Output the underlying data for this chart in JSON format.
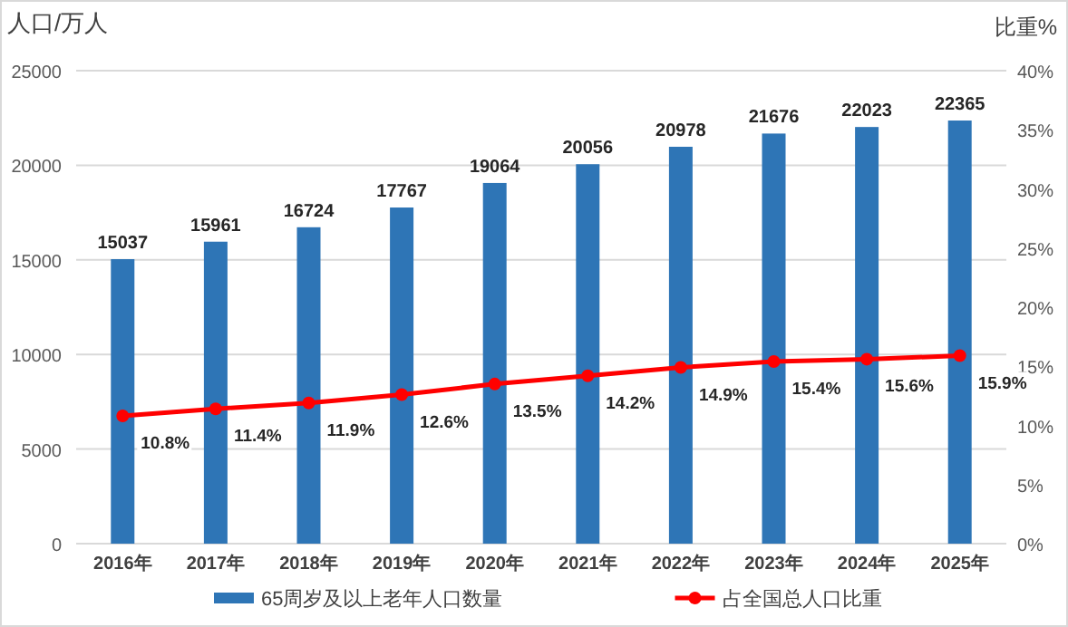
{
  "chart_data": {
    "type": "bar",
    "ylabel": "人口/万人",
    "y2label": "比重%",
    "categories": [
      "2016年",
      "2017年",
      "2018年",
      "2019年",
      "2020年",
      "2021年",
      "2022年",
      "2023年",
      "2024年",
      "2025年"
    ],
    "series": [
      {
        "name": "65周岁及以上老年人口数量",
        "color": "#2e75b6",
        "values": [
          15037,
          15961,
          16724,
          17767,
          19064,
          20056,
          20978,
          21676,
          22023,
          22365
        ],
        "value_labels": [
          "15037",
          "15961",
          "16724",
          "17767",
          "19064",
          "20056",
          "20978",
          "21676",
          "22023",
          "22365"
        ]
      },
      {
        "name": "占全国总人口比重",
        "type": "line",
        "axis": "y2",
        "color": "#ff0000",
        "marker": "circle",
        "values": [
          10.8,
          11.4,
          11.9,
          12.6,
          13.5,
          14.2,
          14.9,
          15.4,
          15.6,
          15.9
        ],
        "value_labels": [
          "10.8%",
          "11.4%",
          "11.9%",
          "12.6%",
          "13.5%",
          "14.2%",
          "14.9%",
          "15.4%",
          "15.6%",
          "15.9%"
        ]
      }
    ],
    "ylim": [
      0,
      25000
    ],
    "yticks": [
      0,
      5000,
      10000,
      15000,
      20000,
      25000
    ],
    "y2lim": [
      0,
      40
    ],
    "y2ticks": [
      {
        "value": 0,
        "label": "0%"
      },
      {
        "value": 5,
        "label": "5%"
      },
      {
        "value": 10,
        "label": "10%"
      },
      {
        "value": 15,
        "label": "15%"
      },
      {
        "value": 20,
        "label": "20%"
      },
      {
        "value": 25,
        "label": "25%"
      },
      {
        "value": 30,
        "label": "30%"
      },
      {
        "value": 35,
        "label": "35%"
      },
      {
        "value": 40,
        "label": "40%"
      }
    ],
    "grid": "y",
    "legend": "bottom"
  }
}
